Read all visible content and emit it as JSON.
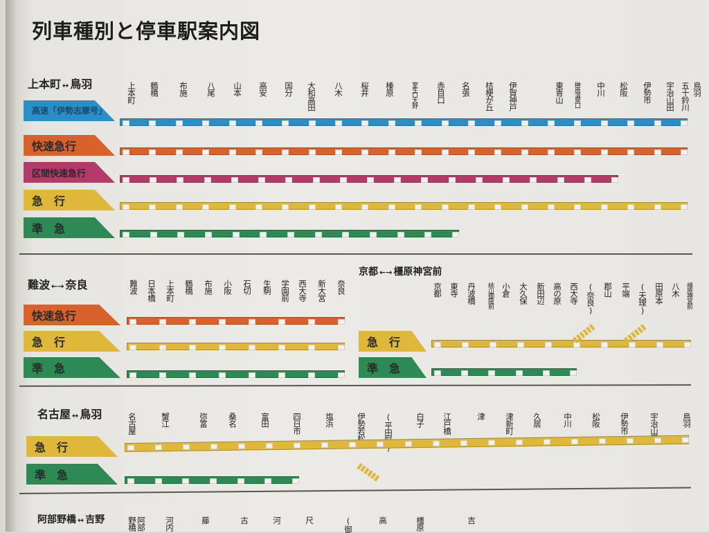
{
  "title": "列車種別と停車駅案内図",
  "colors": {
    "limited_express": "#2a8fc6",
    "rapid_express": "#d9622a",
    "section_rapid_express": "#b43a6a",
    "express": "#dfb83a",
    "semi_express": "#2e8a55"
  },
  "routes": [
    {
      "id": "uehommachi-toba",
      "title_from": "上本町",
      "title_arrow": "↔",
      "title_to": "鳥羽",
      "stations": [
        "上本町",
        "鶴橋",
        "布施",
        "八尾",
        "山本",
        "高安",
        "国分",
        "大和高田",
        "八木",
        "桜井",
        "榛原",
        "室生口大野",
        "赤目口",
        "名張",
        "桔梗が丘",
        "伊賀神戸",
        "東青山",
        "榊原温泉口",
        "中川",
        "松阪",
        "伊勢市",
        "宇治山田",
        "五十鈴川",
        "鳥羽"
      ],
      "services": [
        {
          "label": "高速「伊勢志摩号」",
          "type": "limited_express"
        },
        {
          "label": "快速急行",
          "type": "rapid_express"
        },
        {
          "label": "区間快速急行",
          "type": "section_rapid_express"
        },
        {
          "label": "急　行",
          "type": "express"
        },
        {
          "label": "準　急",
          "type": "semi_express"
        }
      ]
    },
    {
      "id": "namba-nara",
      "title_from": "難波",
      "title_arrow": "←→",
      "title_to": "奈良",
      "stations": [
        "難波",
        "日本橋",
        "上本町",
        "鶴橋",
        "布施",
        "小阪",
        "石切",
        "生駒",
        "学園前",
        "西大寺",
        "新大宮",
        "奈良"
      ],
      "services": [
        {
          "label": "快速急行",
          "type": "rapid_express"
        },
        {
          "label": "急　行",
          "type": "express"
        },
        {
          "label": "準　急",
          "type": "semi_express"
        }
      ]
    },
    {
      "id": "kyoto-kashiharajingumae",
      "title_from": "京都",
      "title_arrow": "←→",
      "title_to": "橿原神宮前",
      "stations": [
        "京都",
        "東寺",
        "丹波橋",
        "桃山御陵前",
        "小倉",
        "大久保",
        "新田辺",
        "高の原",
        "西大寺",
        "(奈良)",
        "郡山",
        "平端",
        "(天理)",
        "田原本",
        "八木",
        "橿原神宮前"
      ],
      "services": [
        {
          "label": "急　行",
          "type": "express"
        },
        {
          "label": "準　急",
          "type": "semi_express"
        }
      ]
    },
    {
      "id": "nagoya-toba",
      "title_from": "名古屋",
      "title_arrow": "↔",
      "title_to": "鳥羽",
      "stations": [
        "名古屋",
        "蟹江",
        "弥富",
        "桑名",
        "富田",
        "四日市",
        "塩浜",
        "伊勢若松",
        "(平田町)",
        "白子",
        "江戸橋",
        "津",
        "津新町",
        "久居",
        "中川",
        "松阪",
        "伊勢市",
        "宇治山田",
        "鳥羽"
      ],
      "services": [
        {
          "label": "急　行",
          "type": "express"
        },
        {
          "label": "準　急",
          "type": "semi_express"
        }
      ]
    },
    {
      "id": "abenobashi-yoshino",
      "title_from": "阿部野橋",
      "title_arrow": "↔",
      "title_to": "吉野",
      "stations": [
        "阿部野橋",
        "河内",
        "藤",
        "古",
        "河",
        "尺",
        "(御",
        "高",
        "橿原",
        "吉"
      ]
    }
  ]
}
